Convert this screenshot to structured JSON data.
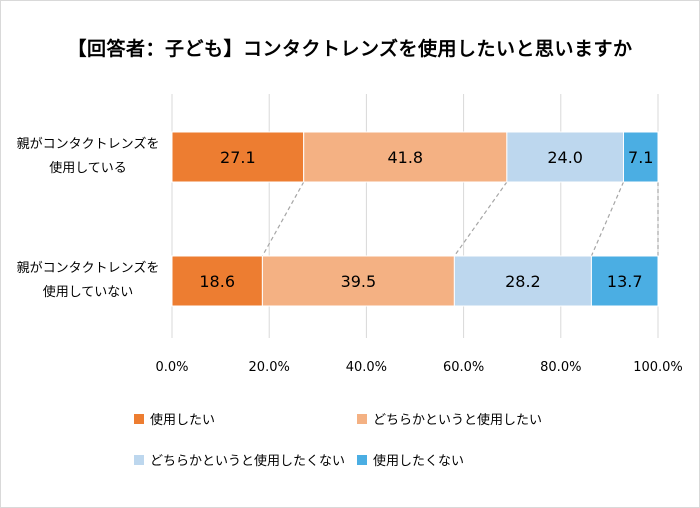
{
  "chart_data": {
    "type": "bar",
    "orientation": "horizontal",
    "stacked": true,
    "title": "【回答者：子ども】コンタクトレンズを使用したいと思いますか",
    "categories": [
      [
        "親がコンタクトレンズを",
        "使用している"
      ],
      [
        "親がコンタクトレンズを",
        "使用していない"
      ]
    ],
    "series": [
      {
        "name": "使用したい",
        "color": "#ED7D31",
        "values": [
          27.1,
          18.6
        ],
        "labels": [
          "27.1",
          "18.6"
        ]
      },
      {
        "name": "どちらかというと使用したい",
        "color": "#F4B183",
        "values": [
          41.8,
          39.5
        ],
        "labels": [
          "41.8",
          "39.5"
        ]
      },
      {
        "name": "どちらかというと使用したくない",
        "color": "#BDD7EE",
        "values": [
          24.0,
          28.2
        ],
        "labels": [
          "24.0",
          "28.2"
        ]
      },
      {
        "name": "使用したくない",
        "color": "#4BAEE3",
        "values": [
          7.1,
          13.7
        ],
        "labels": [
          "7.1",
          "13.7"
        ]
      }
    ],
    "xlim": [
      0,
      100
    ],
    "ticks": [
      0,
      20,
      40,
      60,
      80,
      100
    ],
    "tick_labels": [
      "0.0%",
      "20.0%",
      "40.0%",
      "60.0%",
      "80.0%",
      "100.0%"
    ],
    "grid": true,
    "series_lines": true,
    "legend_position": "bottom"
  }
}
